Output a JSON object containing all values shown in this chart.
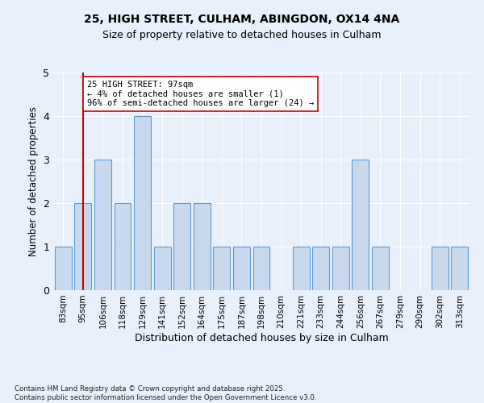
{
  "title_line1": "25, HIGH STREET, CULHAM, ABINGDON, OX14 4NA",
  "title_line2": "Size of property relative to detached houses in Culham",
  "xlabel": "Distribution of detached houses by size in Culham",
  "ylabel": "Number of detached properties",
  "categories": [
    "83sqm",
    "95sqm",
    "106sqm",
    "118sqm",
    "129sqm",
    "141sqm",
    "152sqm",
    "164sqm",
    "175sqm",
    "187sqm",
    "198sqm",
    "210sqm",
    "221sqm",
    "233sqm",
    "244sqm",
    "256sqm",
    "267sqm",
    "279sqm",
    "290sqm",
    "302sqm",
    "313sqm"
  ],
  "values": [
    1,
    2,
    3,
    2,
    4,
    1,
    2,
    2,
    1,
    1,
    1,
    0,
    1,
    1,
    1,
    3,
    1,
    0,
    0,
    1,
    1
  ],
  "bar_color": "#c8d9ed",
  "bar_edge_color": "#5b9bd5",
  "subject_index": 1,
  "subject_line_color": "#cc0000",
  "annotation_text": "25 HIGH STREET: 97sqm\n← 4% of detached houses are smaller (1)\n96% of semi-detached houses are larger (24) →",
  "annotation_box_color": "#ffffff",
  "annotation_box_edge": "#cc0000",
  "ylim": [
    0,
    5
  ],
  "yticks": [
    0,
    1,
    2,
    3,
    4,
    5
  ],
  "background_color": "#e8f0fb",
  "plot_bg_color": "#e8f0fb",
  "footer": "Contains HM Land Registry data © Crown copyright and database right 2025.\nContains public sector information licensed under the Open Government Licence v3.0."
}
